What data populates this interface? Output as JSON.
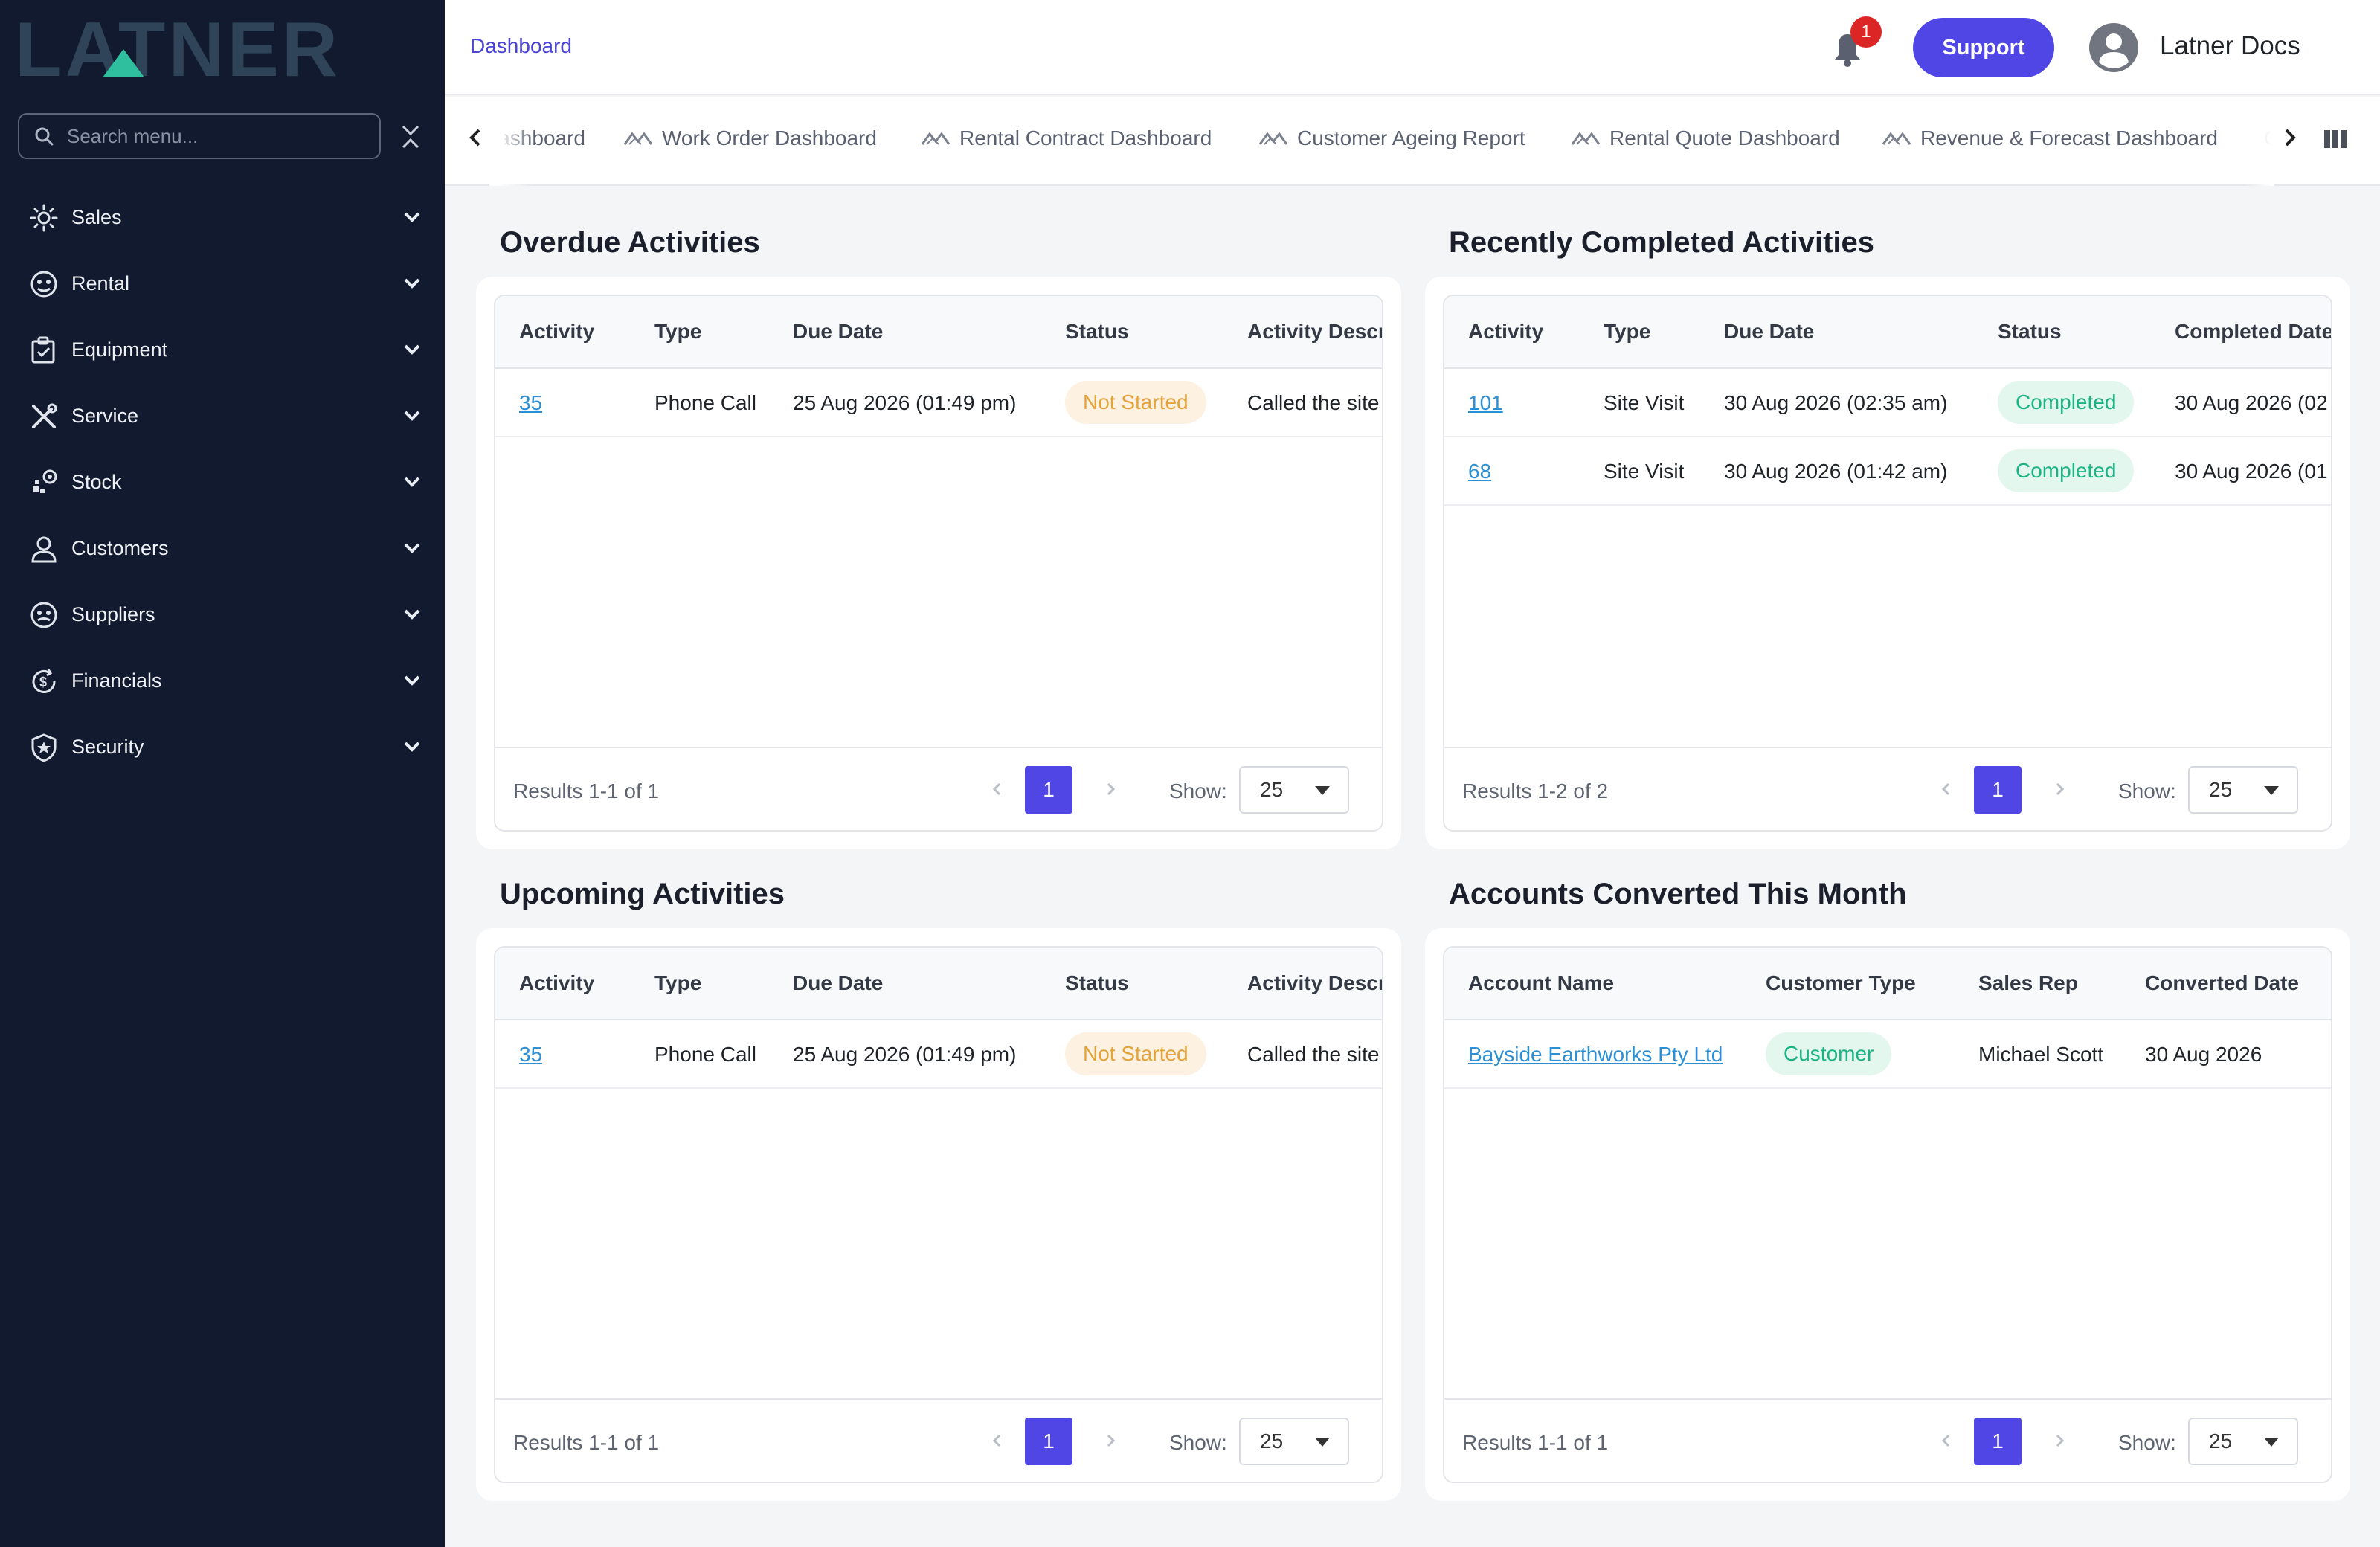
{
  "brand": {
    "logo_text": "LATNER",
    "accent": "#2fbf9f"
  },
  "sidebar": {
    "search_placeholder": "Search menu...",
    "items": [
      {
        "label": "Sales",
        "icon": "sales-icon"
      },
      {
        "label": "Rental",
        "icon": "rental-icon"
      },
      {
        "label": "Equipment",
        "icon": "equipment-icon"
      },
      {
        "label": "Service",
        "icon": "service-icon"
      },
      {
        "label": "Stock",
        "icon": "stock-icon"
      },
      {
        "label": "Customers",
        "icon": "customers-icon"
      },
      {
        "label": "Suppliers",
        "icon": "suppliers-icon"
      },
      {
        "label": "Financials",
        "icon": "financials-icon"
      },
      {
        "label": "Security",
        "icon": "security-icon"
      }
    ]
  },
  "header": {
    "breadcrumb": "Dashboard",
    "notification_count": "1",
    "support_label": "Support",
    "user_name": "Latner Docs"
  },
  "tabs": [
    {
      "label": "Dashboard"
    },
    {
      "label": "Work Order Dashboard"
    },
    {
      "label": "Rental Contract Dashboard"
    },
    {
      "label": "Customer Ageing Report"
    },
    {
      "label": "Rental Quote Dashboard"
    },
    {
      "label": "Revenue & Forecast Dashboard"
    },
    {
      "label": "C"
    }
  ],
  "panels": {
    "overdue": {
      "title": "Overdue Activities",
      "columns": [
        "Activity",
        "Type",
        "Due Date",
        "Status",
        "Activity Descr"
      ],
      "rows": [
        {
          "activity": "35",
          "type": "Phone Call",
          "due": "25 Aug 2026 (01:49 pm)",
          "status": "Not Started",
          "desc": "Called the site"
        }
      ],
      "results": "Results 1-1 of 1",
      "page": "1",
      "show_label": "Show:",
      "page_size": "25"
    },
    "completed": {
      "title": "Recently Completed Activities",
      "columns": [
        "Activity",
        "Type",
        "Due Date",
        "Status",
        "Completed Date"
      ],
      "rows": [
        {
          "activity": "101",
          "type": "Site Visit",
          "due": "30 Aug 2026 (02:35 am)",
          "status": "Completed",
          "completed": "30 Aug 2026 (02"
        },
        {
          "activity": "68",
          "type": "Site Visit",
          "due": "30 Aug 2026 (01:42 am)",
          "status": "Completed",
          "completed": "30 Aug 2026 (01"
        }
      ],
      "results": "Results 1-2 of 2",
      "page": "1",
      "show_label": "Show:",
      "page_size": "25"
    },
    "upcoming": {
      "title": "Upcoming Activities",
      "columns": [
        "Activity",
        "Type",
        "Due Date",
        "Status",
        "Activity Descr"
      ],
      "rows": [
        {
          "activity": "35",
          "type": "Phone Call",
          "due": "25 Aug 2026 (01:49 pm)",
          "status": "Not Started",
          "desc": "Called the site"
        }
      ],
      "results": "Results 1-1 of 1",
      "page": "1",
      "show_label": "Show:",
      "page_size": "25"
    },
    "converted": {
      "title": "Accounts Converted This Month",
      "columns": [
        "Account Name",
        "Customer Type",
        "Sales Rep",
        "Converted Date"
      ],
      "rows": [
        {
          "account": "Bayside Earthworks Pty Ltd",
          "customer_type": "Customer",
          "sales_rep": "Michael Scott",
          "converted": "30 Aug 2026"
        }
      ],
      "results": "Results 1-1 of 1",
      "page": "1",
      "show_label": "Show:",
      "page_size": "25"
    }
  }
}
